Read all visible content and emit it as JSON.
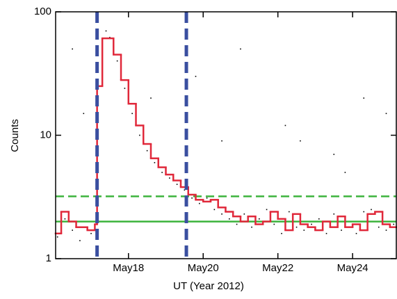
{
  "chart_data": {
    "type": "line",
    "xlabel": "UT (Year 2012)",
    "ylabel": "Counts",
    "xlim": [
      16.05,
      25.17
    ],
    "ylim": [
      1,
      100
    ],
    "log_y": true,
    "xticks": [
      {
        "value": 18,
        "label": "May18"
      },
      {
        "value": 20,
        "label": "May20"
      },
      {
        "value": 22,
        "label": "May22"
      },
      {
        "value": 24,
        "label": "May24"
      }
    ],
    "yticks": [
      1,
      10,
      100
    ],
    "series": [
      {
        "color": "#e0283a",
        "step": true,
        "x": [
          16.05,
          16.2,
          16.4,
          16.6,
          16.9,
          17.1,
          17.16,
          17.3,
          17.6,
          17.8,
          18.0,
          18.2,
          18.4,
          18.6,
          18.8,
          19.0,
          19.2,
          19.4,
          19.6,
          19.8,
          20.0,
          20.2,
          20.4,
          20.6,
          20.8,
          21.0,
          21.2,
          21.4,
          21.6,
          21.8,
          22.0,
          22.2,
          22.4,
          22.6,
          22.8,
          23.0,
          23.2,
          23.4,
          23.6,
          23.8,
          24.0,
          24.2,
          24.4,
          24.6,
          24.8,
          25.0
        ],
        "values": [
          1.6,
          2.4,
          2.0,
          1.8,
          1.7,
          1.9,
          25,
          61,
          45,
          28,
          18,
          12,
          8.5,
          6.5,
          5.5,
          4.8,
          4.3,
          3.8,
          3.3,
          3.0,
          2.9,
          3.0,
          2.6,
          2.4,
          2.2,
          2.0,
          2.2,
          1.9,
          2.0,
          2.4,
          2.1,
          1.7,
          2.3,
          1.9,
          1.8,
          1.7,
          2.0,
          1.8,
          2.2,
          1.8,
          1.9,
          1.7,
          2.3,
          2.4,
          1.9,
          1.8
        ]
      }
    ],
    "scatter": {
      "color": "#000000",
      "x": [
        16.1,
        16.3,
        16.5,
        16.7,
        16.9,
        17.0,
        16.5,
        16.8,
        17.4,
        17.5,
        17.7,
        17.9,
        18.1,
        18.3,
        18.5,
        18.7,
        18.9,
        19.1,
        19.3,
        19.5,
        19.7,
        19.9,
        20.1,
        20.3,
        20.5,
        20.7,
        20.9,
        21.1,
        21.3,
        21.5,
        21.7,
        21.9,
        22.1,
        22.3,
        22.5,
        22.7,
        22.9,
        23.1,
        23.3,
        23.5,
        23.7,
        23.9,
        24.1,
        24.3,
        24.5,
        24.7,
        24.9,
        25.1,
        19.8,
        21.0,
        22.6,
        23.5,
        24.3,
        24.9,
        20.5,
        18.6,
        22.2,
        23.8
      ],
      "values": [
        1.5,
        2.1,
        1.7,
        1.4,
        2.0,
        1.6,
        50,
        15,
        70,
        62,
        40,
        24,
        15,
        10,
        7.5,
        6,
        5,
        4.5,
        4,
        3.6,
        3.1,
        2.8,
        3.1,
        2.5,
        2.3,
        2.1,
        1.9,
        2.3,
        1.8,
        2.1,
        2.5,
        1.9,
        1.6,
        2.4,
        1.8,
        1.7,
        1.9,
        2.1,
        1.6,
        2.3,
        1.7,
        2.0,
        1.6,
        2.4,
        2.5,
        1.8,
        1.7,
        1.9,
        30,
        50,
        9,
        7,
        20,
        15,
        9,
        20,
        12,
        5
      ]
    },
    "vlines": {
      "color": "#3a4fa0",
      "values": [
        17.16,
        19.55
      ]
    },
    "hlines": {
      "color": "#3cb33c",
      "values": [
        2.0,
        3.2
      ],
      "dashed": [
        false,
        true
      ]
    }
  }
}
